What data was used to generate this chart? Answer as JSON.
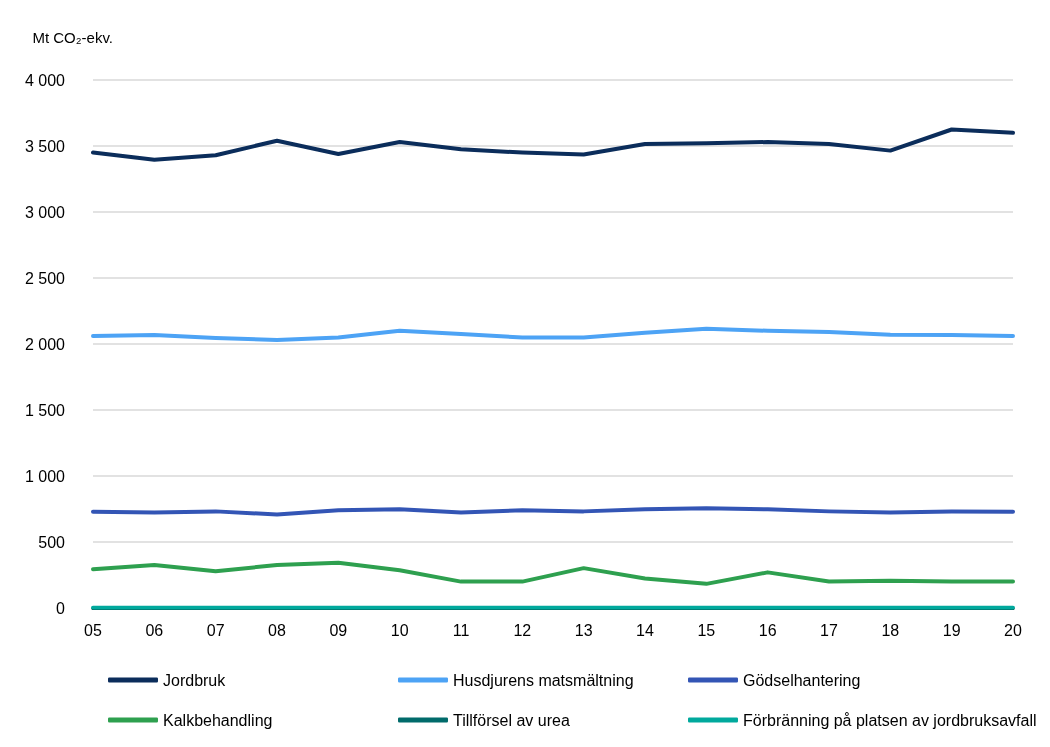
{
  "chart_data": {
    "type": "line",
    "ylabel": "Mt CO₂-ekv.",
    "categories": [
      "05",
      "06",
      "07",
      "08",
      "09",
      "10",
      "11",
      "12",
      "13",
      "14",
      "15",
      "16",
      "17",
      "18",
      "19",
      "20"
    ],
    "ylim": [
      0,
      4000
    ],
    "yticks": [
      0,
      500,
      {
        "value": 1000,
        "label": "1 000"
      },
      {
        "value": 1500,
        "label": "1 500"
      },
      {
        "value": 2000,
        "label": "2 000"
      },
      {
        "value": 2500,
        "label": "2 500"
      },
      {
        "value": 3000,
        "label": "3 000"
      },
      {
        "value": 3500,
        "label": "3 500"
      },
      {
        "value": 4000,
        "label": "4 000"
      }
    ],
    "grid": "y",
    "legend": "bottom",
    "marker": "none",
    "line_style": "solid",
    "series": [
      {
        "name": "Jordbruk",
        "color": "#0b2d5b",
        "values": [
          3450,
          3395,
          3430,
          3540,
          3440,
          3530,
          3475,
          3450,
          3435,
          3515,
          3520,
          3530,
          3515,
          3465,
          3625,
          3600
        ]
      },
      {
        "name": "Husdjurens matsmältning",
        "color": "#4da3f5",
        "values": [
          2060,
          2068,
          2045,
          2030,
          2050,
          2100,
          2075,
          2050,
          2050,
          2085,
          2115,
          2100,
          2090,
          2070,
          2068,
          2060
        ]
      },
      {
        "name": "Gödselhantering",
        "color": "#3355b5",
        "values": [
          730,
          724,
          732,
          708,
          740,
          748,
          724,
          740,
          732,
          748,
          755,
          748,
          732,
          724,
          732,
          730
        ]
      },
      {
        "name": "Kalkbehandling",
        "color": "#2ea04f",
        "values": [
          294,
          326,
          278,
          326,
          342,
          286,
          200,
          200,
          302,
          223,
          183,
          270,
          200,
          207,
          200,
          200
        ]
      },
      {
        "name": "Tillförsel av urea",
        "color": "#006b6b",
        "values": [
          null,
          null,
          null,
          null,
          null,
          null,
          null,
          null,
          null,
          null,
          null,
          null,
          null,
          null,
          null,
          null
        ]
      },
      {
        "name": "Förbränning på platsen av jordbruksavfall",
        "color": "#00a99d",
        "values": [
          1,
          1,
          1,
          1,
          1,
          1,
          1,
          1,
          1,
          1,
          1,
          1,
          1,
          1,
          1,
          1
        ]
      }
    ]
  }
}
